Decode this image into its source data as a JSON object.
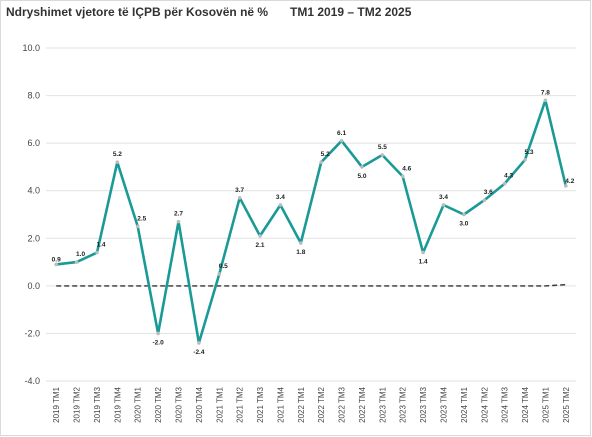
{
  "chart_data": {
    "type": "line",
    "title": "Ndryshimet vjetore të IÇPB për Kosovën në %",
    "subtitle": "TM1 2019 – TM2 2025",
    "xlabel": "",
    "ylabel": "",
    "ylim": [
      -4.0,
      10.0
    ],
    "yticks": [
      "10.0",
      "8.0",
      "6.0",
      "4.0",
      "2.0",
      "0.0",
      "-2.0",
      "-4.0"
    ],
    "grid": true,
    "legend": "none",
    "categories": [
      "2019 TM1",
      "2019 TM2",
      "2019 TM3",
      "2019 TM4",
      "2020 TM1",
      "2020 TM2",
      "2020 TM3",
      "2020 TM4",
      "2021 TM1",
      "2021 TM2",
      "2021 TM3",
      "2021 TM4",
      "2022 TM1",
      "2022 TM2",
      "2022 TM3",
      "2022 TM4",
      "2023 TM1",
      "2023 TM2",
      "2023 TM3",
      "2023 TM4",
      "2024 TM1",
      "2024 TM2",
      "2024 TM3",
      "2024 TM4",
      "2025 TM1",
      "2025 TM2"
    ],
    "series": [
      {
        "values": [
          0.9,
          1.0,
          1.4,
          5.2,
          2.5,
          -2.0,
          2.7,
          -2.4,
          0.5,
          3.7,
          2.1,
          3.4,
          1.8,
          5.2,
          6.1,
          5.0,
          5.5,
          4.6,
          1.4,
          3.4,
          3.0,
          3.6,
          4.3,
          5.3,
          7.8,
          4.2
        ],
        "labels": [
          "0.9",
          "1.0",
          "1.4",
          "5.2",
          "2.5",
          "-2.0",
          "2.7",
          "-2.4",
          "0.5",
          "3.7",
          "2.1",
          "3.4",
          "1.8",
          "5.2",
          "6.1",
          "5.0",
          "5.5",
          "4.6",
          "1.4",
          "3.4",
          "3.0",
          "3.6",
          "4.3",
          "5.3",
          "7.8",
          "4.2"
        ],
        "color": "#1a9a96"
      },
      {
        "values": [
          0.0,
          0.0,
          0.0,
          0.0,
          0.0,
          0.0,
          0.0,
          0.0,
          0.0,
          0.0,
          0.0,
          0.0,
          0.0,
          0.0,
          0.0,
          0.0,
          0.0,
          0.0,
          0.0,
          0.0,
          0.0,
          0.0,
          0.0,
          0.0,
          0.0,
          0.05
        ],
        "color": "#333333",
        "style": "dashed"
      }
    ]
  },
  "colors": {
    "line": "#1a9a96",
    "marker": "#bbbbbb",
    "grid": "#e2e2e2",
    "frame": "#d9d9d9",
    "baseline": "#333333"
  }
}
